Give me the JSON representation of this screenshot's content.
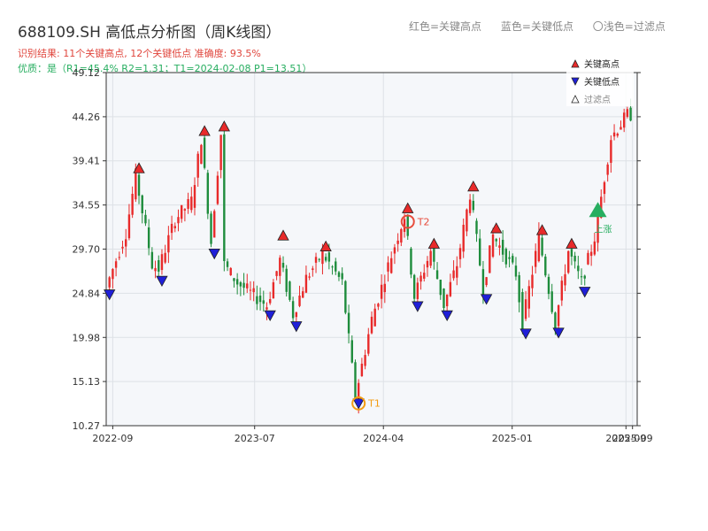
{
  "title": "688109.SH 高低点分析图（周K线图）",
  "legend_top": {
    "red": "红色=关键高点",
    "blue": "蓝色=关键低点",
    "light": "〇浅色=过滤点"
  },
  "info_line1": "识别结果: 11个关键高点, 12个关键低点  准确度: 93.5%",
  "info_line2": "优质：是（R1=45.4%  R2=1.31；T1=2024-02-08 P1=13.51）",
  "chart_data": {
    "type": "candlestick",
    "title": "688109.SH 高低点分析图（周K线图）",
    "ylim": [
      10.27,
      49.12
    ],
    "yticks": [
      10.27,
      15.13,
      19.98,
      24.84,
      29.7,
      34.55,
      39.41,
      44.26,
      49.12
    ],
    "ytick_labels": [
      "10.27",
      "15.13",
      "19.98",
      "24.84",
      "29.70",
      "34.55",
      "39.41",
      "44.26",
      "49.12"
    ],
    "xlim": [
      "2022-08-18",
      "2025-09-25"
    ],
    "xticks": [
      "2022-09-01",
      "2023-07-01",
      "2024-04-01",
      "2025-01-01",
      "2025-09-01",
      "2025-09-15"
    ],
    "xtick_labels": [
      "2022-09",
      "2023-07",
      "2024-04",
      "2025-01",
      "2025-09",
      "2025-09"
    ],
    "grid": true,
    "legend": {
      "position": "top-right",
      "entries": [
        {
          "label": "关键高点",
          "marker": "triangle-up",
          "color": "#e82a2a"
        },
        {
          "label": "关键低点",
          "marker": "triangle-down",
          "color": "#1f1fd8"
        },
        {
          "label": "过滤点",
          "marker": "triangle-up-outline",
          "color": "#333333"
        }
      ]
    },
    "colors": {
      "up": "#e82a2a",
      "down": "#1e8c3c",
      "high": "#e82a2a",
      "low": "#1f1fd8",
      "t_circle": "#f39c12",
      "t2_circle": "#e74c3c",
      "signal": "#27ae60"
    },
    "anchors": [
      [
        "2022-08-25",
        25.5
      ],
      [
        "2022-10-06",
        31.5
      ],
      [
        "2022-10-27",
        37.8
      ],
      [
        "2022-12-01",
        28.0
      ],
      [
        "2022-12-15",
        27.5
      ],
      [
        "2023-01-19",
        33.0
      ],
      [
        "2023-02-23",
        35.0
      ],
      [
        "2023-03-16",
        41.9
      ],
      [
        "2023-04-06",
        30.5
      ],
      [
        "2023-04-27",
        42.4
      ],
      [
        "2023-05-04",
        28.0
      ],
      [
        "2023-06-01",
        26.0
      ],
      [
        "2023-08-03",
        23.5
      ],
      [
        "2023-08-31",
        28.5
      ],
      [
        "2023-09-28",
        22.5
      ],
      [
        "2023-10-26",
        26.5
      ],
      [
        "2023-11-30",
        29.2
      ],
      [
        "2024-01-11",
        26.0
      ],
      [
        "2024-02-08",
        13.51
      ],
      [
        "2024-03-14",
        22.0
      ],
      [
        "2024-04-25",
        29.0
      ],
      [
        "2024-05-23",
        33.4
      ],
      [
        "2024-06-13",
        24.5
      ],
      [
        "2024-07-18",
        29.5
      ],
      [
        "2024-08-15",
        23.5
      ],
      [
        "2024-09-12",
        28.0
      ],
      [
        "2024-10-10",
        35.8
      ],
      [
        "2024-11-07",
        25.5
      ],
      [
        "2024-11-28",
        31.2
      ],
      [
        "2025-01-16",
        27.0
      ],
      [
        "2025-01-30",
        21.5
      ],
      [
        "2025-03-06",
        31.0
      ],
      [
        "2025-04-10",
        21.5
      ],
      [
        "2025-05-08",
        29.5
      ],
      [
        "2025-06-05",
        26.0
      ],
      [
        "2025-07-03",
        31.0
      ],
      [
        "2025-08-07",
        42.0
      ],
      [
        "2025-09-11",
        44.5
      ]
    ],
    "key_highs": [
      {
        "date": "2022-10-27",
        "price": 37.8
      },
      {
        "date": "2023-03-16",
        "price": 41.9
      },
      {
        "date": "2023-04-27",
        "price": 42.4
      },
      {
        "date": "2023-08-31",
        "price": 30.4
      },
      {
        "date": "2023-11-30",
        "price": 29.2
      },
      {
        "date": "2024-05-23",
        "price": 33.4
      },
      {
        "date": "2024-07-18",
        "price": 29.5
      },
      {
        "date": "2024-10-10",
        "price": 35.8
      },
      {
        "date": "2024-11-28",
        "price": 31.2
      },
      {
        "date": "2025-03-06",
        "price": 31.0
      },
      {
        "date": "2025-05-08",
        "price": 29.5
      }
    ],
    "key_lows": [
      {
        "date": "2022-08-25",
        "price": 25.5
      },
      {
        "date": "2022-12-15",
        "price": 27.0
      },
      {
        "date": "2023-04-06",
        "price": 30.0
      },
      {
        "date": "2023-08-03",
        "price": 23.2
      },
      {
        "date": "2023-09-28",
        "price": 22.0
      },
      {
        "date": "2024-02-08",
        "price": 13.51
      },
      {
        "date": "2024-06-13",
        "price": 24.2
      },
      {
        "date": "2024-08-15",
        "price": 23.2
      },
      {
        "date": "2024-11-07",
        "price": 25.0
      },
      {
        "date": "2025-01-30",
        "price": 21.2
      },
      {
        "date": "2025-04-10",
        "price": 21.3
      },
      {
        "date": "2025-06-05",
        "price": 25.8
      }
    ],
    "annotations": [
      {
        "label": "T1",
        "date": "2024-02-08",
        "price": 13.51
      },
      {
        "label": "T2",
        "date": "2024-05-23",
        "price": 33.4
      },
      {
        "label": "上涨",
        "date": "2025-07-03",
        "price": 34.0
      }
    ]
  }
}
